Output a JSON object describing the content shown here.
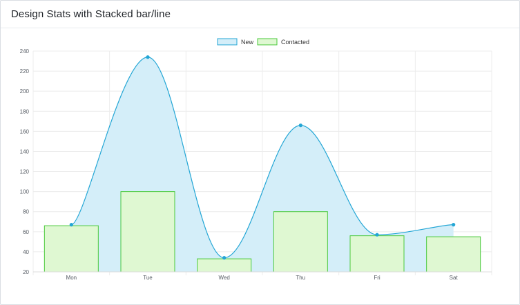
{
  "card": {
    "title": "Design Stats with Stacked bar/line"
  },
  "chart_data": {
    "type": "bar",
    "categories": [
      "Mon",
      "Tue",
      "Wed",
      "Thu",
      "Fri",
      "Sat"
    ],
    "series": [
      {
        "name": "New",
        "type": "area",
        "values": [
          67,
          234,
          34,
          166,
          57,
          67
        ],
        "stroke": "#23a6d5",
        "fill": "#d4eef9"
      },
      {
        "name": "Contacted",
        "type": "bar",
        "values": [
          66,
          100,
          33,
          80,
          56,
          55
        ],
        "stroke": "#49c93a",
        "fill": "#dff8d2"
      }
    ],
    "title": "",
    "xlabel": "",
    "ylabel": "",
    "ylim": [
      20,
      240
    ],
    "yticks": [
      20,
      40,
      60,
      80,
      100,
      120,
      140,
      160,
      180,
      200,
      220,
      240
    ],
    "grid": true,
    "legend_position": "top-center"
  }
}
